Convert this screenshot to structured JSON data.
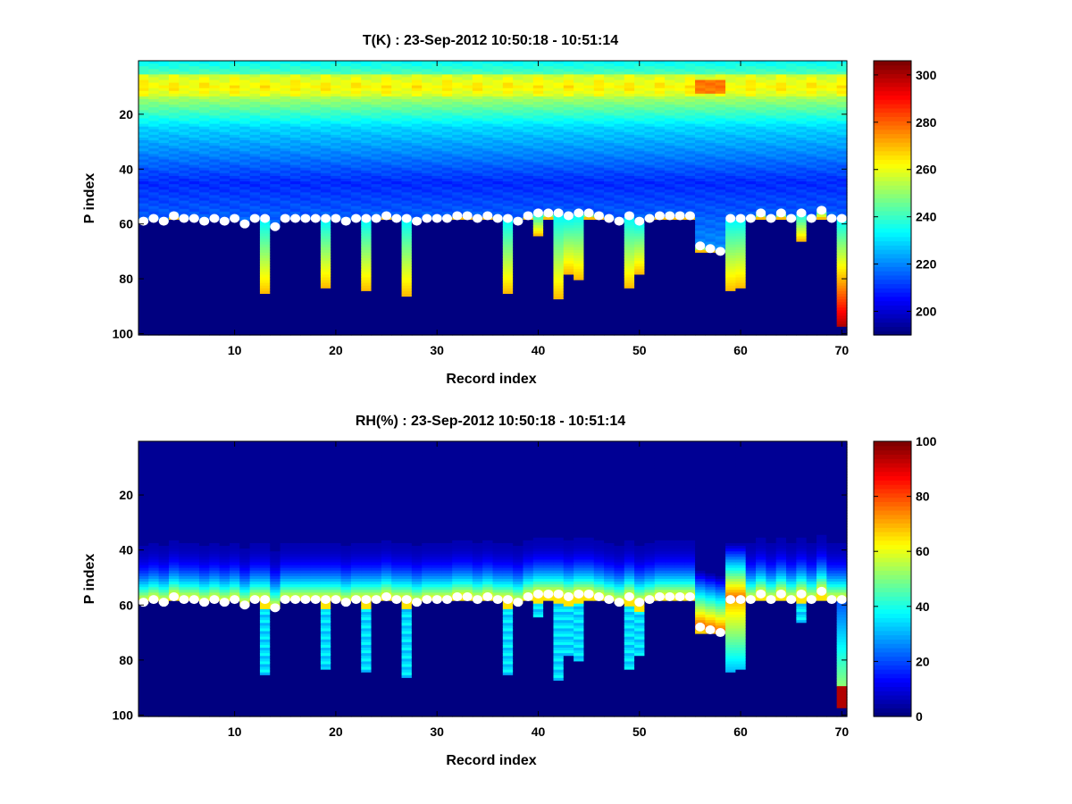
{
  "chart_data": [
    {
      "type": "heatmap",
      "title": "T(K) : 23-Sep-2012 10:50:18 - 10:51:14",
      "xlabel": "Record index",
      "ylabel": "P index",
      "xlim": [
        0.5,
        70.5
      ],
      "ylim": [
        100,
        1
      ],
      "y_reversed": true,
      "xticks": [
        10,
        20,
        30,
        40,
        50,
        60,
        70
      ],
      "yticks": [
        20,
        40,
        60,
        80,
        100
      ],
      "colormap": "jet",
      "clim": [
        190,
        306
      ],
      "colorbar_ticks": [
        200,
        220,
        240,
        260,
        280,
        300
      ],
      "field": "temperature",
      "marker_color": "#ffffff"
    },
    {
      "type": "heatmap",
      "title": "RH(%) : 23-Sep-2012 10:50:18 - 10:51:14",
      "xlabel": "Record index",
      "ylabel": "P index",
      "xlim": [
        0.5,
        70.5
      ],
      "ylim": [
        100,
        1
      ],
      "y_reversed": true,
      "xticks": [
        10,
        20,
        30,
        40,
        50,
        60,
        70
      ],
      "yticks": [
        20,
        40,
        60,
        80,
        100
      ],
      "colormap": "jet",
      "clim": [
        0,
        100
      ],
      "colorbar_ticks": [
        0,
        20,
        40,
        60,
        80,
        100
      ],
      "field": "relative_humidity",
      "marker_color": "#ffffff"
    }
  ],
  "shared_data": {
    "record_index": [
      1,
      2,
      3,
      4,
      5,
      6,
      7,
      8,
      9,
      10,
      11,
      12,
      13,
      14,
      15,
      16,
      17,
      18,
      19,
      20,
      21,
      22,
      23,
      24,
      25,
      26,
      27,
      28,
      29,
      30,
      31,
      32,
      33,
      34,
      35,
      36,
      37,
      38,
      39,
      40,
      41,
      42,
      43,
      44,
      45,
      46,
      47,
      48,
      49,
      50,
      51,
      52,
      53,
      54,
      55,
      56,
      57,
      58,
      59,
      60,
      61,
      62,
      63,
      64,
      65,
      66,
      67,
      68,
      69,
      70
    ],
    "surface_p_index": [
      59,
      58,
      59,
      57,
      58,
      58,
      59,
      58,
      59,
      58,
      60,
      58,
      58,
      61,
      58,
      58,
      58,
      58,
      58,
      58,
      59,
      58,
      58,
      58,
      57,
      58,
      58,
      59,
      58,
      58,
      58,
      57,
      57,
      58,
      57,
      58,
      58,
      59,
      57,
      56,
      56,
      56,
      57,
      56,
      56,
      57,
      58,
      59,
      57,
      59,
      58,
      57,
      57,
      57,
      57,
      68,
      69,
      70,
      58,
      58,
      58,
      56,
      58,
      56,
      58,
      56,
      58,
      55,
      58,
      58
    ],
    "column_bottom_p_index": [
      58,
      58,
      58,
      58,
      58,
      58,
      58,
      58,
      58,
      58,
      58,
      58,
      85,
      58,
      58,
      58,
      58,
      58,
      83,
      58,
      58,
      58,
      84,
      58,
      58,
      58,
      86,
      58,
      58,
      58,
      58,
      58,
      58,
      58,
      58,
      58,
      85,
      58,
      58,
      64,
      58,
      87,
      78,
      80,
      58,
      58,
      58,
      58,
      83,
      78,
      58,
      58,
      58,
      58,
      58,
      70,
      70,
      70,
      84,
      83,
      58,
      58,
      58,
      58,
      58,
      66,
      58,
      58,
      58,
      97
    ]
  }
}
